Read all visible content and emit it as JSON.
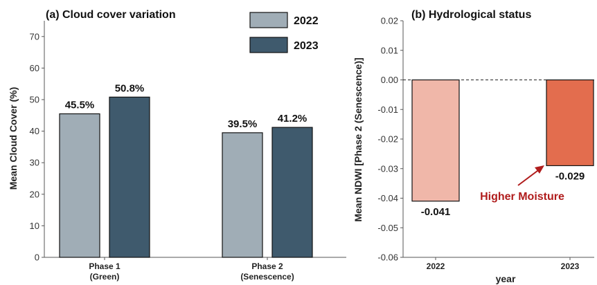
{
  "chart_data": [
    {
      "type": "bar",
      "title": "(a)  Cloud cover variation",
      "ylabel": "Mean Cloud Cover (%)",
      "xlabel": "",
      "categories": [
        "Phase 1\n(Green)",
        "Phase 2\n(Senescence)"
      ],
      "series": [
        {
          "name": "2022",
          "values": [
            45.5,
            39.5
          ],
          "labels": [
            "45.5%",
            "39.5%"
          ],
          "color": "#a0adb6"
        },
        {
          "name": "2023",
          "values": [
            50.8,
            41.2
          ],
          "labels": [
            "50.8%",
            "41.2%"
          ],
          "color": "#3f5a6d"
        }
      ],
      "ylim": [
        0,
        75
      ],
      "yticks": [
        0,
        10,
        20,
        30,
        40,
        50,
        60,
        70
      ],
      "legend": "top-right",
      "grid": false
    },
    {
      "type": "bar",
      "title": "(b)  Hydrological status",
      "ylabel": "Mean NDWI [Phase 2 (Senescence)]",
      "xlabel": "year",
      "categories": [
        "2022",
        "2023"
      ],
      "values": [
        -0.041,
        -0.029
      ],
      "labels": [
        "-0.041",
        "-0.029"
      ],
      "colors": [
        "#f0b7a9",
        "#e36d4e"
      ],
      "ylim": [
        -0.06,
        0.02
      ],
      "yticks": [
        "0.02",
        "0.01",
        "0.00",
        "-0.01",
        "-0.02",
        "-0.03",
        "-0.04",
        "-0.05",
        "-0.06"
      ],
      "reference_line": 0,
      "annotation": "Higher Moisture",
      "annotation_color": "#b01c1c",
      "grid": false
    }
  ]
}
